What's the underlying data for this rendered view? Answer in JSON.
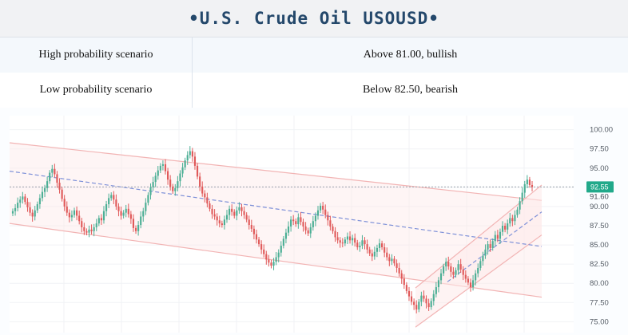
{
  "header": {
    "title": "•U.S. Crude Oil USOUSD•"
  },
  "scenarios": [
    {
      "label": "High probability scenario",
      "value": "Above 81.00, bullish"
    },
    {
      "label": "Low  probability  scenario",
      "value": "Below  82.50,  bearish"
    }
  ],
  "chart_data": {
    "type": "candlestick",
    "symbol": "USOUSD",
    "y_ticks": [
      "100.00",
      "97.50",
      "95.00",
      "92.50",
      "90.00",
      "87.50",
      "85.00",
      "82.50",
      "80.00",
      "77.50",
      "75.00"
    ],
    "ylim": [
      74,
      101
    ],
    "current_price": "92.55",
    "extra_level": "91.60",
    "colors": {
      "up": "#4caf95",
      "down": "#e05a5a",
      "channel": "#f2b4b4",
      "trend": "#7d90d8",
      "price_line": "#9aa3ad",
      "tag": "#22a98a"
    },
    "closes": [
      89.4,
      89.8,
      90.5,
      90.9,
      91.3,
      90.6,
      89.9,
      89.2,
      88.7,
      89.5,
      90.3,
      91.1,
      91.9,
      92.4,
      93.3,
      94.4,
      94.9,
      94.2,
      93.1,
      92.2,
      91.0,
      90.0,
      89.2,
      88.6,
      88.9,
      89.5,
      88.8,
      88.1,
      87.3,
      86.8,
      86.6,
      87.0,
      86.8,
      87.3,
      87.8,
      88.5,
      88.2,
      89.4,
      90.3,
      91.1,
      91.5,
      90.9,
      90.0,
      89.4,
      88.8,
      89.2,
      89.7,
      89.0,
      88.4,
      87.2,
      86.8,
      87.6,
      88.7,
      89.4,
      90.5,
      91.5,
      92.5,
      93.2,
      94.0,
      94.7,
      95.3,
      95.5,
      94.6,
      93.5,
      92.6,
      92.0,
      92.4,
      93.3,
      94.3,
      95.1,
      96.0,
      96.7,
      97.2,
      96.5,
      95.3,
      93.9,
      92.6,
      91.7,
      91.2,
      90.4,
      89.7,
      89.0,
      88.7,
      88.2,
      87.8,
      87.6,
      88.3,
      88.9,
      89.7,
      89.3,
      88.8,
      89.5,
      89.9,
      89.4,
      88.9,
      88.3,
      87.6,
      87.1,
      86.4,
      85.7,
      85.1,
      84.4,
      83.8,
      83.1,
      82.7,
      82.3,
      82.8,
      83.4,
      84.0,
      84.9,
      85.8,
      86.6,
      87.4,
      88.3,
      88.1,
      87.7,
      88.6,
      88.0,
      87.4,
      86.9,
      86.5,
      87.3,
      88.1,
      88.8,
      89.5,
      90.1,
      89.6,
      88.9,
      88.2,
      87.4,
      86.8,
      86.0,
      85.6,
      85.3,
      85.2,
      85.7,
      86.1,
      85.6,
      85.9,
      85.3,
      84.7,
      84.9,
      85.6,
      85.1,
      84.4,
      83.9,
      83.5,
      84.1,
      84.6,
      85.2,
      84.7,
      84.0,
      83.4,
      82.9,
      83.2,
      82.6,
      82.0,
      81.3,
      80.6,
      79.8,
      79.0,
      78.3,
      77.6,
      77.2,
      76.6,
      77.6,
      78.4,
      78.0,
      77.4,
      76.9,
      77.7,
      78.6,
      79.5,
      80.4,
      81.3,
      82.2,
      82.8,
      82.2,
      81.5,
      81.1,
      81.7,
      82.5,
      81.8,
      81.1,
      80.6,
      80.1,
      79.5,
      80.4,
      81.3,
      82.0,
      82.9,
      83.6,
      84.4,
      85.1,
      84.6,
      85.5,
      86.3,
      85.8,
      86.7,
      87.5,
      87.0,
      87.8,
      88.5,
      88.1,
      88.9,
      89.6,
      90.7,
      91.8,
      92.9,
      93.5,
      92.8,
      92.55
    ]
  }
}
